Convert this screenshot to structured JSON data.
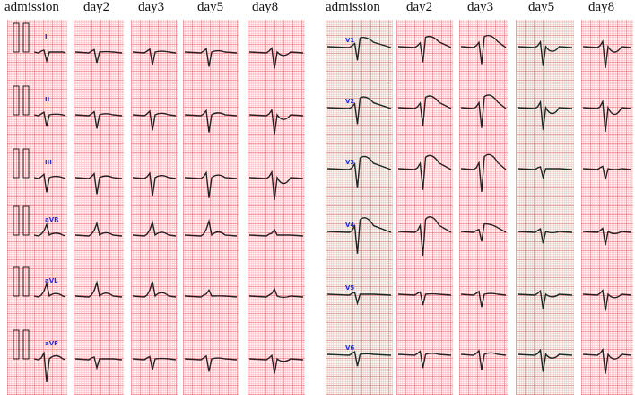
{
  "panels": [
    {
      "headers": [
        "admission",
        "day2",
        "day3",
        "day5",
        "day8"
      ],
      "leads": [
        "I",
        "II",
        "III",
        "aVR",
        "aVL",
        "aVF"
      ]
    },
    {
      "headers": [
        "admission",
        "day2",
        "day3",
        "day5",
        "day8"
      ],
      "leads": [
        "V1",
        "V2",
        "V3",
        "V4",
        "V5",
        "V6"
      ]
    }
  ]
}
